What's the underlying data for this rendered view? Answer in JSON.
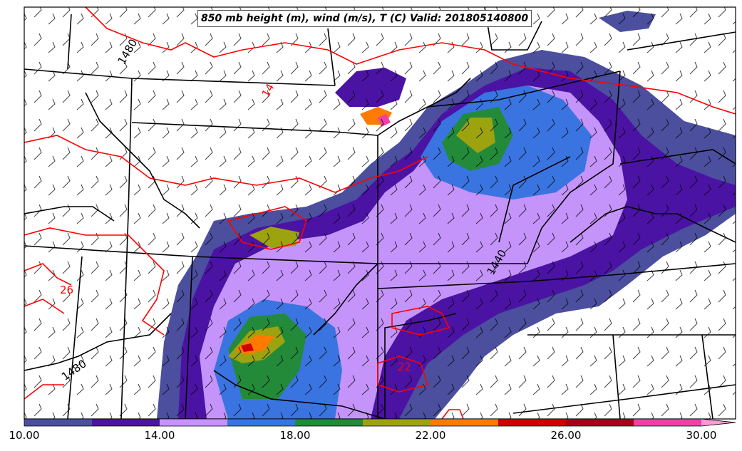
{
  "title": "850 mb height (m), wind (m/s), T (C) Valid: 201805140800",
  "colorbar": {
    "ticks": [
      "10.00",
      "14.00",
      "18.00",
      "22.00",
      "26.00",
      "30.00"
    ],
    "min": 10,
    "max": 32,
    "colors": [
      "#4b4f9e",
      "#4b13a3",
      "#c594fa",
      "#3a74e0",
      "#238a3a",
      "#9ca30f",
      "#ff7a00",
      "#d10000",
      "#a8001b",
      "#f23fa3",
      "#ff9ad6"
    ]
  },
  "contour_labels": {
    "height": [
      "1480",
      "1440",
      "1480"
    ],
    "temperature": [
      "14",
      "26",
      "22"
    ]
  },
  "colors": {
    "height_contour": "#000000",
    "temperature_contour": "#ff0000",
    "state_borders": "#000000"
  }
}
